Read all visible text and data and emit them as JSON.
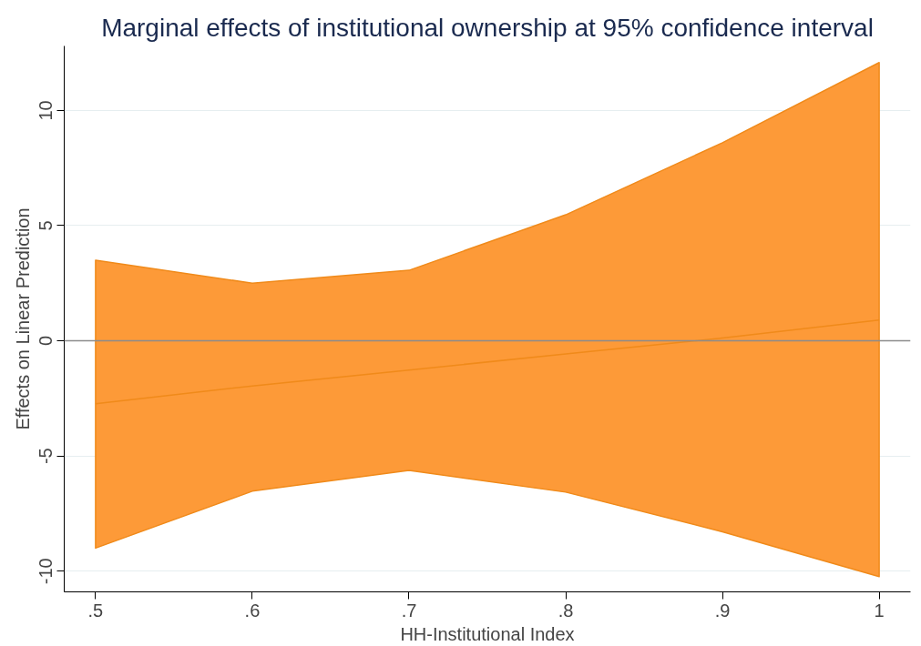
{
  "chart_data": {
    "type": "line",
    "title": "Marginal effects of institutional ownership at 95% confidence interval",
    "xlabel": "HH-Institutional Index",
    "ylabel": "Effects on Linear Prediction",
    "x": [
      0.5,
      0.6,
      0.7,
      0.8,
      0.9,
      1.0
    ],
    "series": [
      {
        "color": "#f08a1a",
        "values": [
          -2.73,
          -1.96,
          -1.27,
          -0.57,
          0.12,
          0.9
        ],
        "lower": [
          -9.0,
          -6.53,
          -5.63,
          -6.57,
          -8.29,
          -10.24
        ],
        "upper": [
          3.5,
          2.5,
          3.06,
          5.47,
          8.6,
          12.08
        ]
      }
    ],
    "xlim": [
      0.48,
      1.02
    ],
    "ylim": [
      -10.9,
      12.8
    ],
    "xticks": [
      {
        "value": 0.5,
        "label": ".5"
      },
      {
        "value": 0.6,
        "label": ".6"
      },
      {
        "value": 0.7,
        "label": ".7"
      },
      {
        "value": 0.8,
        "label": ".8"
      },
      {
        "value": 0.9,
        "label": ".9"
      },
      1
    ],
    "yticks": [
      -10,
      -5,
      0,
      5,
      10
    ],
    "ref_lines": [
      {
        "axis": "y",
        "value": 0,
        "color": "#8c8c8c"
      }
    ],
    "grid": "y",
    "line_style": "solid",
    "marker": "none"
  }
}
